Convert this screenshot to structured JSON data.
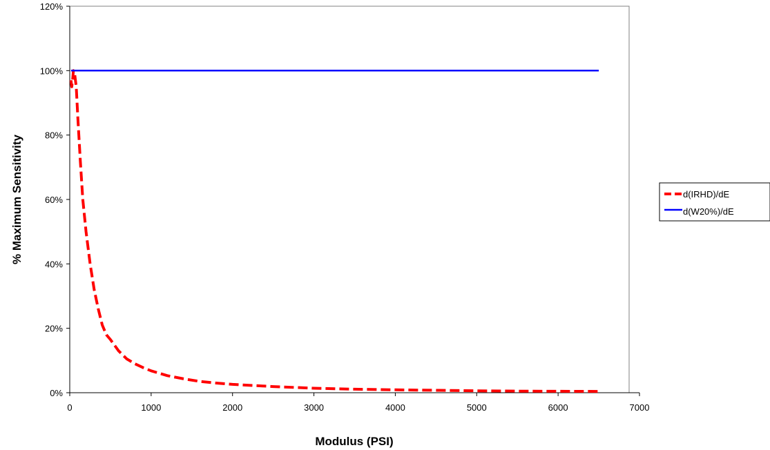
{
  "chart_data": {
    "type": "line",
    "title": "",
    "xlabel": "Modulus (PSI)",
    "ylabel": "% Maximum Sensitivity",
    "xlim": [
      0,
      7000
    ],
    "ylim": [
      0,
      1.2
    ],
    "x_ticks": [
      0,
      1000,
      2000,
      3000,
      4000,
      5000,
      6000,
      7000
    ],
    "x_tick_labels": [
      "0",
      "1000",
      "2000",
      "3000",
      "4000",
      "5000",
      "6000",
      "7000"
    ],
    "y_ticks": [
      0,
      0.2,
      0.4,
      0.6,
      0.8,
      1.0,
      1.2
    ],
    "y_tick_labels": [
      "0%",
      "20%",
      "40%",
      "60%",
      "80%",
      "100%",
      "120%"
    ],
    "grid": false,
    "legend_position": "right",
    "series": [
      {
        "name": "d(IRHD)/dE",
        "color": "#ff0000",
        "line_style": "dashed",
        "points": [
          [
            15,
            0.97
          ],
          [
            25,
            0.95
          ],
          [
            35,
            0.97
          ],
          [
            45,
            1.0
          ],
          [
            60,
            0.99
          ],
          [
            80,
            0.95
          ],
          [
            100,
            0.85
          ],
          [
            130,
            0.72
          ],
          [
            160,
            0.6
          ],
          [
            200,
            0.5
          ],
          [
            250,
            0.4
          ],
          [
            300,
            0.32
          ],
          [
            350,
            0.26
          ],
          [
            400,
            0.21
          ],
          [
            450,
            0.18
          ],
          [
            500,
            0.165
          ],
          [
            600,
            0.13
          ],
          [
            700,
            0.105
          ],
          [
            800,
            0.09
          ],
          [
            900,
            0.078
          ],
          [
            1000,
            0.068
          ],
          [
            1200,
            0.053
          ],
          [
            1400,
            0.043
          ],
          [
            1600,
            0.035
          ],
          [
            1800,
            0.03
          ],
          [
            2000,
            0.026
          ],
          [
            2500,
            0.019
          ],
          [
            3000,
            0.014
          ],
          [
            3500,
            0.011
          ],
          [
            4000,
            0.009
          ],
          [
            4500,
            0.0075
          ],
          [
            5000,
            0.006
          ],
          [
            5500,
            0.005
          ],
          [
            6000,
            0.0045
          ],
          [
            6500,
            0.004
          ]
        ]
      },
      {
        "name": "d(W20%)/dE",
        "color": "#0000ff",
        "line_style": "solid",
        "points": [
          [
            15,
            1.0
          ],
          [
            6500,
            1.0
          ]
        ]
      }
    ]
  }
}
